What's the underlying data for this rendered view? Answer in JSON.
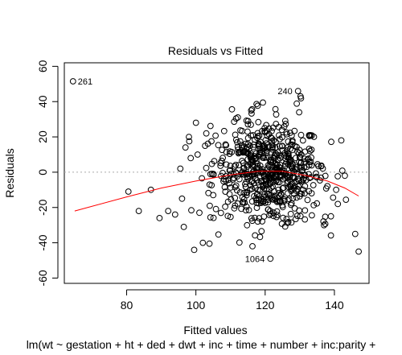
{
  "chart_data": {
    "type": "scatter",
    "title": "Residuals vs Fitted",
    "xlabel": "Fitted values",
    "ylabel": "Residuals",
    "subtitle": "lm(wt ~ gestation + ht + ded + dwt + inc + time + number + inc:parity +",
    "xlim": [
      62,
      150
    ],
    "ylim": [
      -63,
      62
    ],
    "x_ticks": [
      80,
      100,
      120,
      140
    ],
    "y_ticks": [
      -60,
      -40,
      -20,
      0,
      20,
      40,
      60
    ],
    "reference_line": {
      "y": 0,
      "style": "dotted",
      "color": "#aaaaaa"
    },
    "smoother": {
      "color": "#ff0000",
      "points": [
        [
          65,
          -22
        ],
        [
          80,
          -14
        ],
        [
          90,
          -9
        ],
        [
          100,
          -5
        ],
        [
          110,
          -1.5
        ],
        [
          118,
          0.5
        ],
        [
          125,
          0.5
        ],
        [
          132,
          -2
        ],
        [
          138,
          -5
        ],
        [
          143,
          -9
        ],
        [
          147,
          -13.5
        ]
      ]
    },
    "labeled_points": [
      {
        "label": "261",
        "x": 64.5,
        "y": 51.5
      },
      {
        "label": "240",
        "x": 129.5,
        "y": 46
      },
      {
        "label": "1064",
        "x": 121.5,
        "y": -49
      }
    ],
    "marker": {
      "shape": "open-circle",
      "color": "#000000"
    },
    "generated_points": {
      "count": 640,
      "x_center": 121,
      "x_spread": 8,
      "y_center": 0,
      "y_spread": 14,
      "sparse_x": [
        80.5,
        83.5,
        87,
        89.5,
        92,
        94,
        95.5,
        96.5,
        97,
        98,
        99.5,
        100,
        101,
        96,
        98.5,
        100.5,
        143,
        146,
        147,
        142,
        141,
        140.5,
        139,
        137,
        102,
        103,
        104,
        105
      ],
      "sparse_y": [
        -11,
        -22,
        -10,
        -26,
        -22,
        -24,
        2,
        -31,
        14,
        20,
        -44,
        28,
        -23,
        -15,
        8,
        10,
        -2,
        -35,
        -45,
        18,
        -18,
        -10,
        -25,
        -30,
        -40,
        22,
        -19,
        -13
      ]
    }
  }
}
